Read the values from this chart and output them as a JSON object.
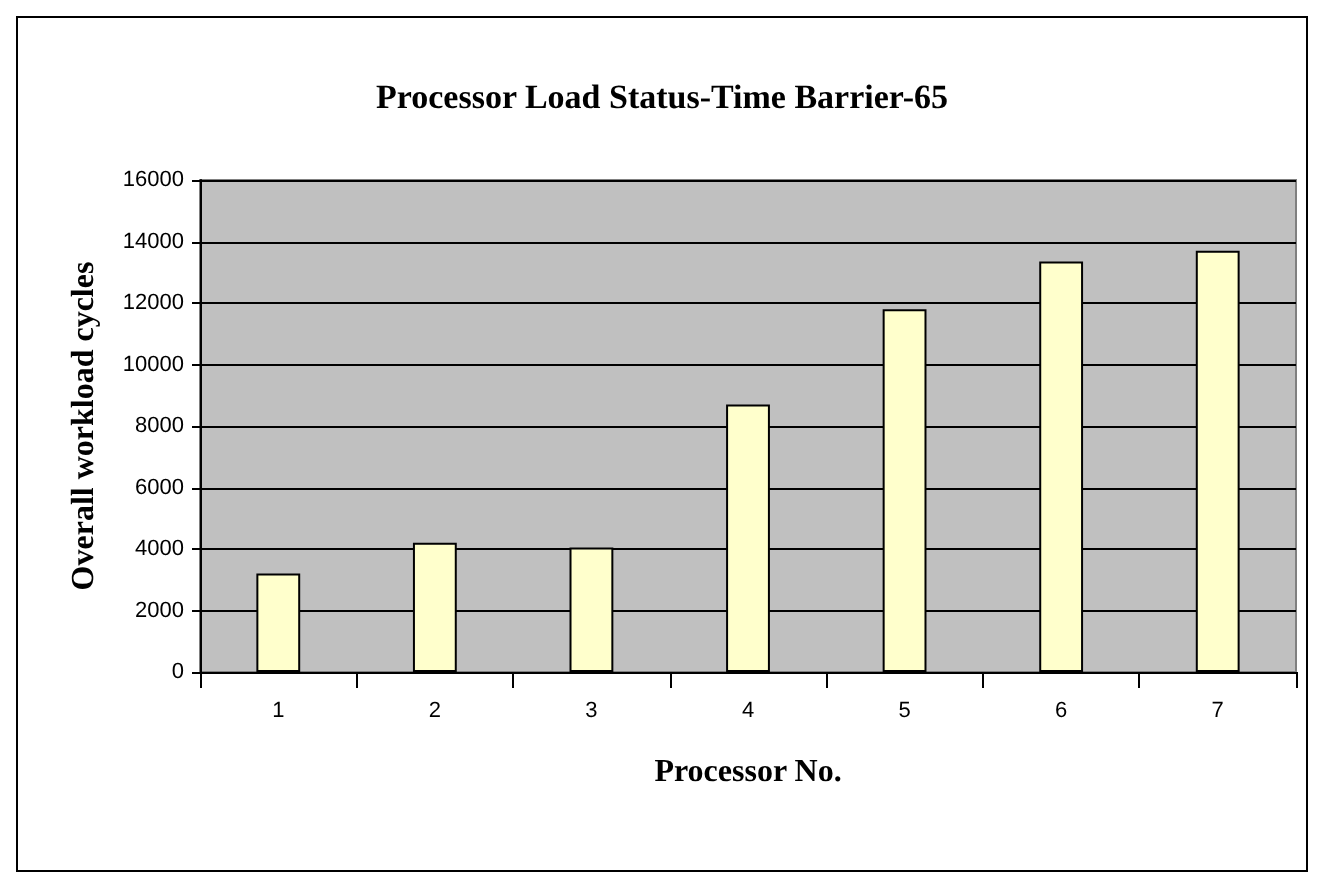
{
  "chart_data": {
    "type": "bar",
    "title": "Processor Load Status-Time Barrier-65",
    "xlabel": "Processor No.",
    "ylabel": "Overall workload cycles",
    "categories": [
      "1",
      "2",
      "3",
      "4",
      "5",
      "6",
      "7"
    ],
    "values": [
      3200,
      4200,
      4050,
      8700,
      11800,
      13350,
      13700
    ],
    "color": "#ffffcc",
    "ylim": [
      0,
      16000
    ],
    "yticks": [
      0,
      2000,
      4000,
      6000,
      8000,
      10000,
      12000,
      14000,
      16000
    ],
    "grid": "y"
  }
}
